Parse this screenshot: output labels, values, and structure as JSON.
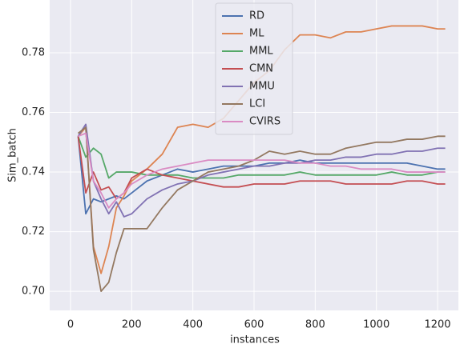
{
  "chart_data": {
    "type": "line",
    "xlabel": "instances",
    "ylabel": "Sim_batch",
    "x": [
      25,
      50,
      75,
      100,
      125,
      150,
      175,
      200,
      250,
      300,
      350,
      400,
      450,
      500,
      550,
      600,
      650,
      700,
      750,
      800,
      850,
      900,
      950,
      1000,
      1050,
      1100,
      1150,
      1200,
      1225
    ],
    "series": [
      {
        "name": "RD",
        "color": "#4c72b0",
        "values": [
          0.752,
          0.726,
          0.731,
          0.73,
          0.731,
          0.732,
          0.731,
          0.733,
          0.737,
          0.739,
          0.741,
          0.74,
          0.741,
          0.742,
          0.742,
          0.742,
          0.743,
          0.743,
          0.744,
          0.743,
          0.743,
          0.743,
          0.743,
          0.743,
          0.743,
          0.743,
          0.742,
          0.741,
          0.741
        ]
      },
      {
        "name": "ML",
        "color": "#dd8452",
        "values": [
          0.752,
          0.755,
          0.715,
          0.706,
          0.715,
          0.728,
          0.732,
          0.737,
          0.741,
          0.746,
          0.755,
          0.756,
          0.755,
          0.758,
          0.764,
          0.77,
          0.774,
          0.781,
          0.786,
          0.786,
          0.785,
          0.787,
          0.787,
          0.788,
          0.789,
          0.789,
          0.789,
          0.788,
          0.788
        ]
      },
      {
        "name": "MML",
        "color": "#55a868",
        "values": [
          0.752,
          0.745,
          0.748,
          0.746,
          0.738,
          0.74,
          0.74,
          0.74,
          0.739,
          0.739,
          0.739,
          0.738,
          0.738,
          0.738,
          0.739,
          0.739,
          0.739,
          0.739,
          0.74,
          0.739,
          0.739,
          0.739,
          0.739,
          0.739,
          0.74,
          0.739,
          0.739,
          0.74,
          0.74
        ]
      },
      {
        "name": "CMN",
        "color": "#c44e52",
        "values": [
          0.752,
          0.733,
          0.74,
          0.734,
          0.735,
          0.731,
          0.733,
          0.738,
          0.741,
          0.739,
          0.738,
          0.737,
          0.736,
          0.735,
          0.735,
          0.736,
          0.736,
          0.736,
          0.737,
          0.737,
          0.737,
          0.736,
          0.736,
          0.736,
          0.736,
          0.737,
          0.737,
          0.736,
          0.736
        ]
      },
      {
        "name": "MMU",
        "color": "#8172b3",
        "values": [
          0.752,
          0.756,
          0.737,
          0.731,
          0.726,
          0.73,
          0.725,
          0.726,
          0.731,
          0.734,
          0.736,
          0.737,
          0.739,
          0.74,
          0.741,
          0.742,
          0.742,
          0.743,
          0.743,
          0.744,
          0.744,
          0.745,
          0.745,
          0.746,
          0.746,
          0.747,
          0.747,
          0.748,
          0.748
        ]
      },
      {
        "name": "LCI",
        "color": "#937860",
        "values": [
          0.753,
          0.755,
          0.714,
          0.7,
          0.703,
          0.713,
          0.721,
          0.721,
          0.721,
          0.728,
          0.734,
          0.737,
          0.74,
          0.741,
          0.742,
          0.744,
          0.747,
          0.746,
          0.747,
          0.746,
          0.746,
          0.748,
          0.749,
          0.75,
          0.75,
          0.751,
          0.751,
          0.752,
          0.752
        ]
      },
      {
        "name": "CVIRS",
        "color": "#da8bc3",
        "values": [
          0.752,
          0.753,
          0.737,
          0.733,
          0.728,
          0.731,
          0.733,
          0.736,
          0.739,
          0.741,
          0.742,
          0.743,
          0.744,
          0.744,
          0.744,
          0.744,
          0.744,
          0.744,
          0.743,
          0.743,
          0.742,
          0.742,
          0.741,
          0.741,
          0.741,
          0.74,
          0.74,
          0.74,
          0.74
        ]
      }
    ],
    "xlim": [
      -68,
      1268
    ],
    "xticks": [
      0,
      200,
      400,
      600,
      800,
      1000,
      1200
    ],
    "ylim": [
      0.6936,
      0.7977
    ],
    "yticks": [
      {
        "value": 0.7,
        "label": "0.70"
      },
      {
        "value": 0.72,
        "label": "0.72"
      },
      {
        "value": 0.74,
        "label": "0.74"
      },
      {
        "value": 0.76,
        "label": "0.76"
      },
      {
        "value": 0.78,
        "label": "0.78"
      }
    ],
    "grid": true,
    "legend": "upper center"
  }
}
